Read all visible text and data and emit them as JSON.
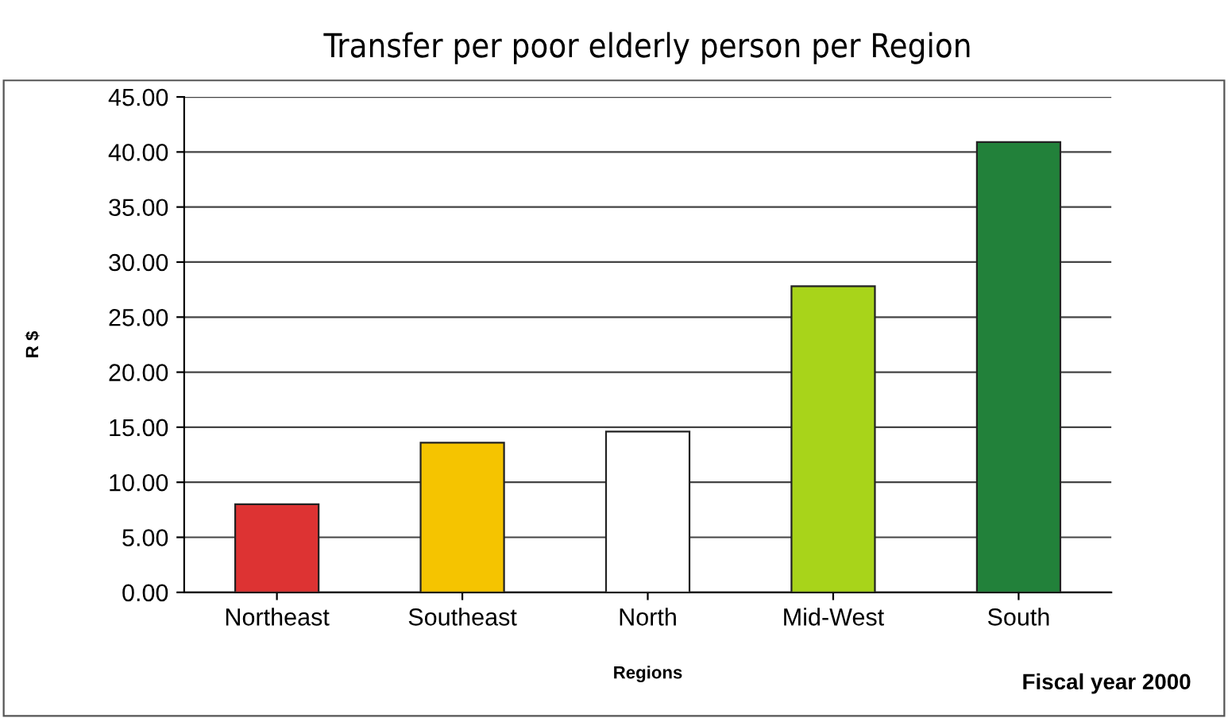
{
  "chart_data": {
    "type": "bar",
    "title": "Transfer per poor elderly person per Region",
    "xlabel": "Regions",
    "ylabel": "R $",
    "categories": [
      "Northeast",
      "Southeast",
      "North",
      "Mid-West",
      "South"
    ],
    "values": [
      8.0,
      13.6,
      14.6,
      27.8,
      40.9
    ],
    "colors": [
      "#dd3333",
      "#f5c400",
      "#ffffff",
      "#a8d41a",
      "#22813a"
    ],
    "ylim": [
      0,
      45
    ],
    "yticks": [
      {
        "value": 0,
        "label": "0.00"
      },
      {
        "value": 5,
        "label": "5.00"
      },
      {
        "value": 10,
        "label": "10.00"
      },
      {
        "value": 15,
        "label": "15.00"
      },
      {
        "value": 20,
        "label": "20.00"
      },
      {
        "value": 25,
        "label": "25.00"
      },
      {
        "value": 30,
        "label": "30.00"
      },
      {
        "value": 35,
        "label": "35.00"
      },
      {
        "value": 40,
        "label": "40.00"
      },
      {
        "value": 45,
        "label": "45.00"
      }
    ],
    "grid": "y",
    "legend": false,
    "annotations": [
      "Fiscal year 2000"
    ]
  }
}
